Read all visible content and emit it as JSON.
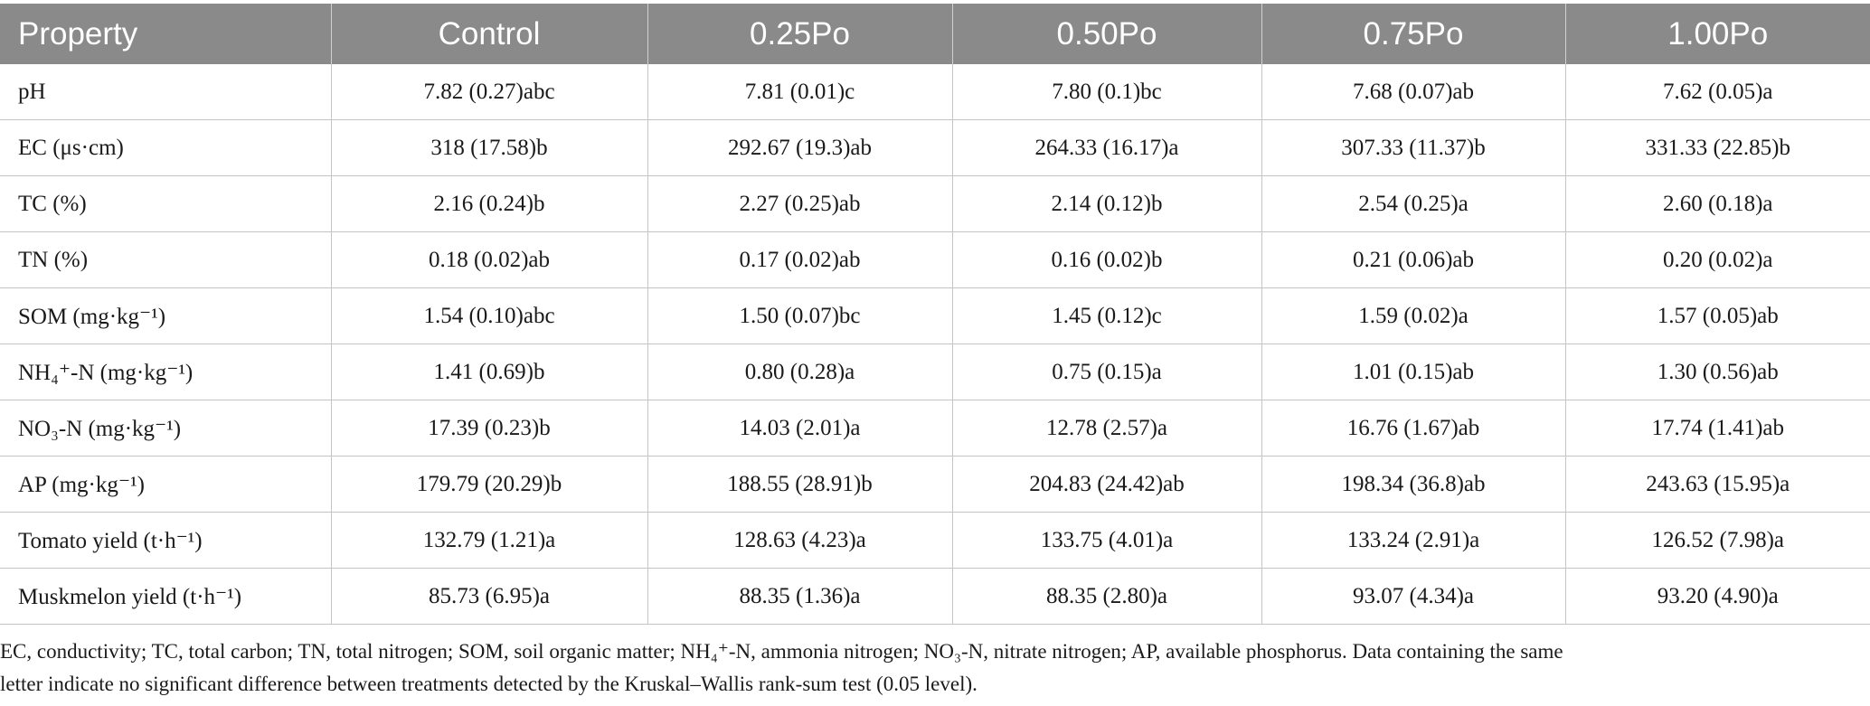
{
  "table": {
    "headers": [
      "Property",
      "Control",
      "0.25Po",
      "0.50Po",
      "0.75Po",
      "1.00Po"
    ],
    "rows": [
      {
        "property": "pH",
        "values": [
          "7.82 (0.27)abc",
          "7.81 (0.01)c",
          "7.80 (0.1)bc",
          "7.68 (0.07)ab",
          "7.62 (0.05)a"
        ]
      },
      {
        "property": "EC (μs·cm)",
        "values": [
          "318 (17.58)b",
          "292.67 (19.3)ab",
          "264.33 (16.17)a",
          "307.33 (11.37)b",
          "331.33 (22.85)b"
        ]
      },
      {
        "property": "TC (%)",
        "values": [
          "2.16 (0.24)b",
          "2.27 (0.25)ab",
          "2.14 (0.12)b",
          "2.54 (0.25)a",
          "2.60 (0.18)a"
        ]
      },
      {
        "property": "TN (%)",
        "values": [
          "0.18 (0.02)ab",
          "0.17 (0.02)ab",
          "0.16 (0.02)b",
          "0.21 (0.06)ab",
          "0.20 (0.02)a"
        ]
      },
      {
        "property": "SOM (mg·kg⁻¹)",
        "values": [
          "1.54 (0.10)abc",
          "1.50 (0.07)bc",
          "1.45 (0.12)c",
          "1.59 (0.02)a",
          "1.57 (0.05)ab"
        ]
      },
      {
        "property": "NH₄⁺-N (mg·kg⁻¹)",
        "values": [
          "1.41 (0.69)b",
          "0.80 (0.28)a",
          "0.75 (0.15)a",
          "1.01 (0.15)ab",
          "1.30 (0.56)ab"
        ]
      },
      {
        "property": "NO₃-N (mg·kg⁻¹)",
        "values": [
          "17.39 (0.23)b",
          "14.03 (2.01)a",
          "12.78 (2.57)a",
          "16.76 (1.67)ab",
          "17.74 (1.41)ab"
        ]
      },
      {
        "property": "AP (mg·kg⁻¹)",
        "values": [
          "179.79 (20.29)b",
          "188.55 (28.91)b",
          "204.83 (24.42)ab",
          "198.34 (36.8)ab",
          "243.63 (15.95)a"
        ]
      },
      {
        "property": "Tomato yield (t·h⁻¹)",
        "values": [
          "132.79 (1.21)a",
          "128.63 (4.23)a",
          "133.75 (4.01)a",
          "133.24 (2.91)a",
          "126.52 (7.98)a"
        ]
      },
      {
        "property": "Muskmelon yield (t·h⁻¹)",
        "values": [
          "85.73 (6.95)a",
          "88.35 (1.36)a",
          "88.35 (2.80)a",
          "93.07 (4.34)a",
          "93.20 (4.90)a"
        ]
      }
    ]
  },
  "footnote": {
    "line1": "EC, conductivity; TC, total carbon; TN, total nitrogen; SOM, soil organic matter; NH₄⁺-N, ammonia nitrogen; NO₃-N, nitrate nitrogen; AP, available phosphorus. Data containing the same",
    "line2": "letter indicate no significant difference between treatments detected by the Kruskal–Wallis rank-sum test (0.05 level)."
  },
  "colors": {
    "header_bg": "#8a8a8a",
    "header_text": "#ffffff",
    "grid_line": "#c4c4c4"
  }
}
